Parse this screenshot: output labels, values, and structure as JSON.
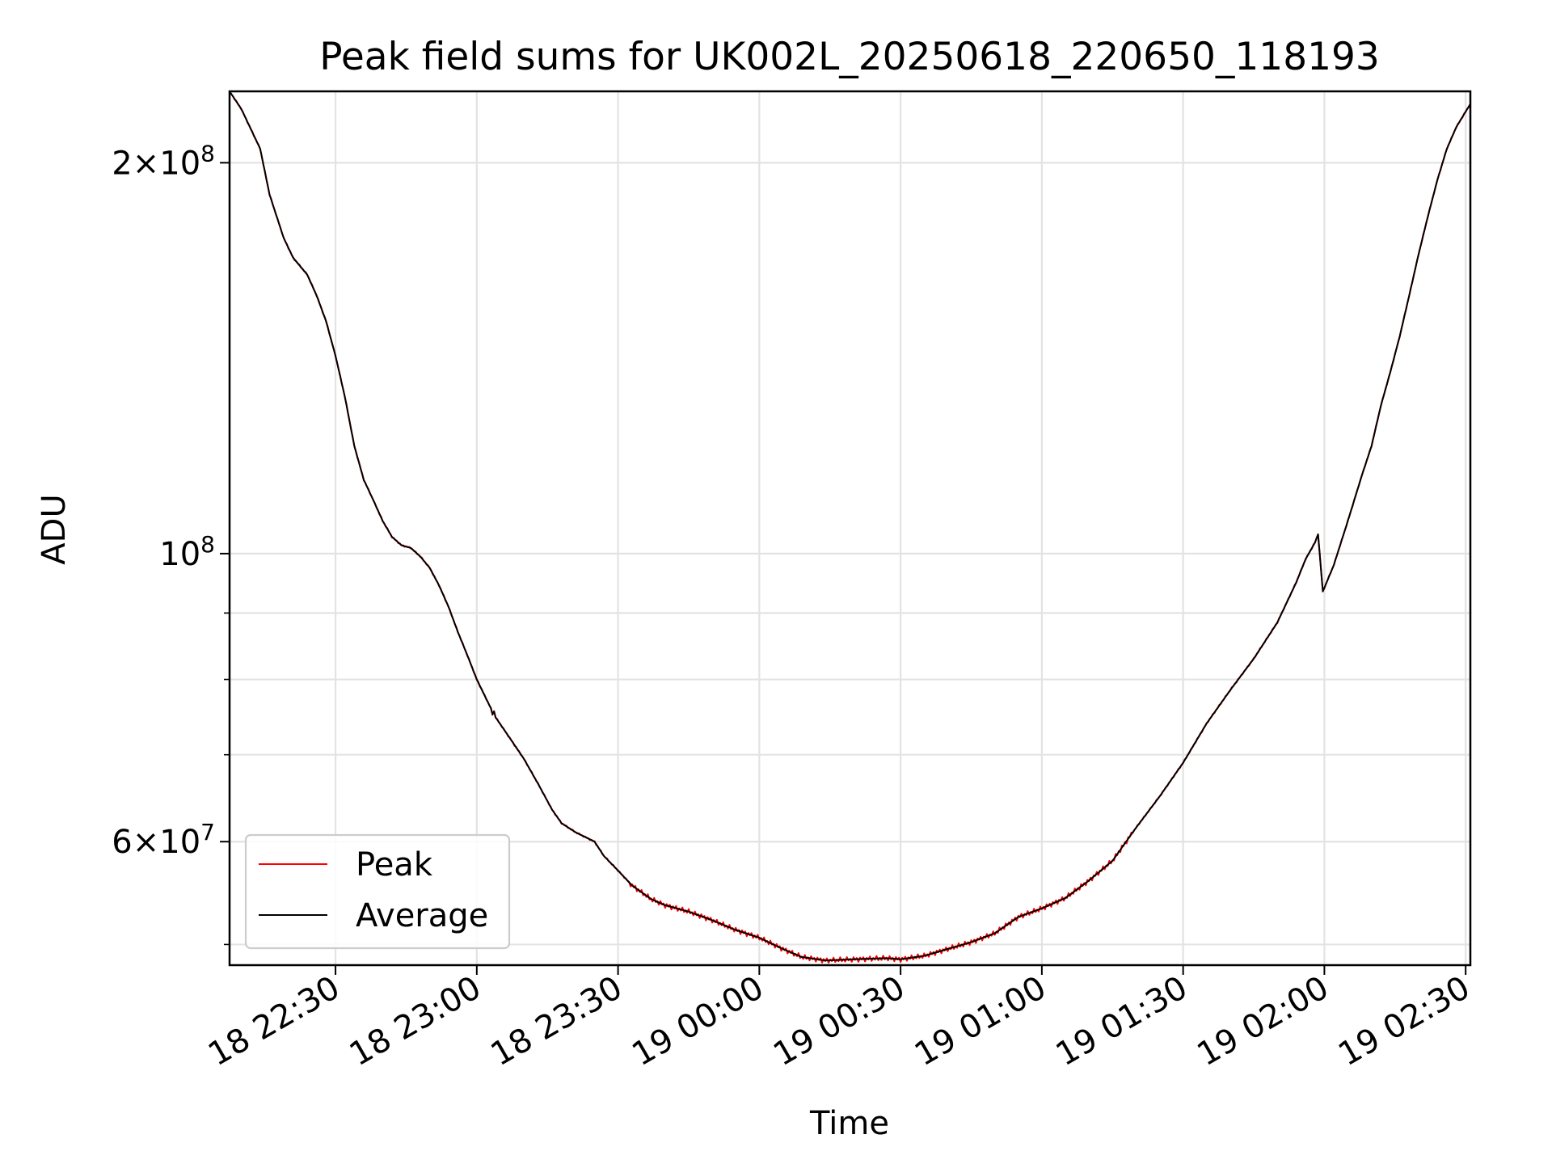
{
  "chart_data": {
    "type": "line",
    "title": "Peak field sums for UK002L_20250618_220650_118193",
    "xlabel": "Time",
    "ylabel": "ADU",
    "y_scale": "log",
    "grid": true,
    "legend_placement": "lower-left",
    "xlim": [
      "2025-06-18T22:07:30",
      "2025-06-19T02:31:00"
    ],
    "ylim": [
      48200000,
      227000000
    ],
    "x_ticks": [
      {
        "t": "2025-06-18T22:30:00",
        "label": "18 22:30"
      },
      {
        "t": "2025-06-18T23:00:00",
        "label": "18 23:00"
      },
      {
        "t": "2025-06-18T23:30:00",
        "label": "18 23:30"
      },
      {
        "t": "2025-06-19T00:00:00",
        "label": "19 00:00"
      },
      {
        "t": "2025-06-19T00:30:00",
        "label": "19 00:30"
      },
      {
        "t": "2025-06-19T01:00:00",
        "label": "19 01:00"
      },
      {
        "t": "2025-06-19T01:30:00",
        "label": "19 01:30"
      },
      {
        "t": "2025-06-19T02:00:00",
        "label": "19 02:00"
      },
      {
        "t": "2025-06-19T02:30:00",
        "label": "19 02:30"
      }
    ],
    "y_major_ticks": [
      {
        "v": 200000000,
        "mant": "2×10",
        "exp": "8"
      },
      {
        "v": 100000000,
        "mant": "10",
        "exp": "8"
      },
      {
        "v": 60000000,
        "mant": "6×10",
        "exp": "7"
      }
    ],
    "y_minor_ticks": [
      50000000,
      70000000,
      80000000,
      90000000,
      300000000
    ],
    "series": [
      {
        "name": "Peak",
        "color": "#ff0000",
        "noisy": true,
        "points": [
          [
            "2025-06-18T22:07:30",
            227000000
          ],
          [
            "2025-06-18T22:10:00",
            220000000
          ],
          [
            "2025-06-18T22:14:00",
            205000000
          ],
          [
            "2025-06-18T22:16:00",
            189000000
          ],
          [
            "2025-06-18T22:19:00",
            175000000
          ],
          [
            "2025-06-18T22:21:00",
            169000000
          ],
          [
            "2025-06-18T22:24:00",
            164000000
          ],
          [
            "2025-06-18T22:26:00",
            158000000
          ],
          [
            "2025-06-18T22:28:00",
            151000000
          ],
          [
            "2025-06-18T22:30:00",
            142000000
          ],
          [
            "2025-06-18T22:32:00",
            132000000
          ],
          [
            "2025-06-18T22:34:00",
            121000000
          ],
          [
            "2025-06-18T22:36:00",
            114000000
          ],
          [
            "2025-06-18T22:38:00",
            110000000
          ],
          [
            "2025-06-18T22:40:00",
            106000000
          ],
          [
            "2025-06-18T22:42:00",
            103000000
          ],
          [
            "2025-06-18T22:44:00",
            101500000
          ],
          [
            "2025-06-18T22:46:00",
            101000000
          ],
          [
            "2025-06-18T22:48:00",
            99500000
          ],
          [
            "2025-06-18T22:50:00",
            97500000
          ],
          [
            "2025-06-18T22:52:00",
            94500000
          ],
          [
            "2025-06-18T22:54:00",
            91000000
          ],
          [
            "2025-06-18T22:56:00",
            87000000
          ],
          [
            "2025-06-18T22:58:00",
            83500000
          ],
          [
            "2025-06-18T23:00:00",
            80000000
          ],
          [
            "2025-06-18T23:03:00",
            76000000
          ],
          [
            "2025-06-18T23:03:20",
            75200000
          ],
          [
            "2025-06-18T23:03:40",
            75600000
          ],
          [
            "2025-06-18T23:04:00",
            74800000
          ],
          [
            "2025-06-18T23:06:00",
            73000000
          ],
          [
            "2025-06-18T23:10:00",
            69500000
          ],
          [
            "2025-06-18T23:13:00",
            66500000
          ],
          [
            "2025-06-18T23:16:00",
            63500000
          ],
          [
            "2025-06-18T23:18:00",
            62000000
          ],
          [
            "2025-06-18T23:21:00",
            61000000
          ],
          [
            "2025-06-18T23:25:00",
            60000000
          ],
          [
            "2025-06-18T23:27:00",
            58500000
          ],
          [
            "2025-06-18T23:30:00",
            57000000
          ],
          [
            "2025-06-18T23:33:00",
            55500000
          ],
          [
            "2025-06-18T23:37:00",
            54200000
          ],
          [
            "2025-06-18T23:40:00",
            53600000
          ],
          [
            "2025-06-18T23:45:00",
            53000000
          ],
          [
            "2025-06-18T23:50:00",
            52200000
          ],
          [
            "2025-06-18T23:55:00",
            51300000
          ],
          [
            "2025-06-19T00:00:00",
            50600000
          ],
          [
            "2025-06-19T00:05:00",
            49600000
          ],
          [
            "2025-06-19T00:09:00",
            48900000
          ],
          [
            "2025-06-19T00:14:00",
            48600000
          ],
          [
            "2025-06-19T00:20:00",
            48700000
          ],
          [
            "2025-06-19T00:27:00",
            48800000
          ],
          [
            "2025-06-19T00:30:00",
            48700000
          ],
          [
            "2025-06-19T00:35:00",
            49000000
          ],
          [
            "2025-06-19T00:40:00",
            49600000
          ],
          [
            "2025-06-19T00:45:00",
            50200000
          ],
          [
            "2025-06-19T00:50:00",
            51000000
          ],
          [
            "2025-06-19T00:55:00",
            52500000
          ],
          [
            "2025-06-19T01:00:00",
            53300000
          ],
          [
            "2025-06-19T01:05:00",
            54300000
          ],
          [
            "2025-06-19T01:10:00",
            56000000
          ],
          [
            "2025-06-19T01:15:00",
            58000000
          ],
          [
            "2025-06-19T01:20:00",
            61500000
          ],
          [
            "2025-06-19T01:25:00",
            65000000
          ],
          [
            "2025-06-19T01:30:00",
            69000000
          ],
          [
            "2025-06-19T01:35:00",
            74000000
          ],
          [
            "2025-06-19T01:40:00",
            78500000
          ],
          [
            "2025-06-19T01:45:00",
            83000000
          ],
          [
            "2025-06-19T01:50:00",
            88500000
          ],
          [
            "2025-06-19T01:54:00",
            95000000
          ],
          [
            "2025-06-19T01:56:00",
            99000000
          ],
          [
            "2025-06-19T01:58:00",
            102000000
          ],
          [
            "2025-06-19T01:58:40",
            103500000
          ],
          [
            "2025-06-19T01:59:40",
            93500000
          ],
          [
            "2025-06-19T02:02:00",
            98000000
          ],
          [
            "2025-06-19T02:05:00",
            106000000
          ],
          [
            "2025-06-19T02:08:00",
            115000000
          ],
          [
            "2025-06-19T02:10:00",
            121000000
          ],
          [
            "2025-06-19T02:12:00",
            130000000
          ],
          [
            "2025-06-19T02:14:00",
            138000000
          ],
          [
            "2025-06-19T02:16:00",
            147000000
          ],
          [
            "2025-06-19T02:18:00",
            158000000
          ],
          [
            "2025-06-19T02:20:00",
            170000000
          ],
          [
            "2025-06-19T02:22:00",
            182000000
          ],
          [
            "2025-06-19T02:24:00",
            194000000
          ],
          [
            "2025-06-19T02:26:00",
            205000000
          ],
          [
            "2025-06-19T02:28:00",
            213000000
          ],
          [
            "2025-06-19T02:31:00",
            222000000
          ]
        ]
      },
      {
        "name": "Average",
        "color": "#000000",
        "noisy": false,
        "points": [
          [
            "2025-06-18T22:07:30",
            227000000
          ],
          [
            "2025-06-18T22:10:00",
            220000000
          ],
          [
            "2025-06-18T22:14:00",
            205000000
          ],
          [
            "2025-06-18T22:16:00",
            189000000
          ],
          [
            "2025-06-18T22:19:00",
            175000000
          ],
          [
            "2025-06-18T22:21:00",
            169000000
          ],
          [
            "2025-06-18T22:24:00",
            164000000
          ],
          [
            "2025-06-18T22:26:00",
            158000000
          ],
          [
            "2025-06-18T22:28:00",
            151000000
          ],
          [
            "2025-06-18T22:30:00",
            142000000
          ],
          [
            "2025-06-18T22:32:00",
            132000000
          ],
          [
            "2025-06-18T22:34:00",
            121000000
          ],
          [
            "2025-06-18T22:36:00",
            114000000
          ],
          [
            "2025-06-18T22:38:00",
            110000000
          ],
          [
            "2025-06-18T22:40:00",
            106000000
          ],
          [
            "2025-06-18T22:42:00",
            103000000
          ],
          [
            "2025-06-18T22:44:00",
            101500000
          ],
          [
            "2025-06-18T22:46:00",
            101000000
          ],
          [
            "2025-06-18T22:48:00",
            99500000
          ],
          [
            "2025-06-18T22:50:00",
            97500000
          ],
          [
            "2025-06-18T22:52:00",
            94500000
          ],
          [
            "2025-06-18T22:54:00",
            91000000
          ],
          [
            "2025-06-18T22:56:00",
            87000000
          ],
          [
            "2025-06-18T22:58:00",
            83500000
          ],
          [
            "2025-06-18T23:00:00",
            80000000
          ],
          [
            "2025-06-18T23:03:00",
            76000000
          ],
          [
            "2025-06-18T23:03:20",
            75200000
          ],
          [
            "2025-06-18T23:03:40",
            75600000
          ],
          [
            "2025-06-18T23:04:00",
            74800000
          ],
          [
            "2025-06-18T23:06:00",
            73000000
          ],
          [
            "2025-06-18T23:10:00",
            69500000
          ],
          [
            "2025-06-18T23:13:00",
            66500000
          ],
          [
            "2025-06-18T23:16:00",
            63500000
          ],
          [
            "2025-06-18T23:18:00",
            62000000
          ],
          [
            "2025-06-18T23:21:00",
            61000000
          ],
          [
            "2025-06-18T23:25:00",
            60000000
          ],
          [
            "2025-06-18T23:27:00",
            58500000
          ],
          [
            "2025-06-18T23:30:00",
            57000000
          ],
          [
            "2025-06-18T23:33:00",
            55500000
          ],
          [
            "2025-06-18T23:37:00",
            54200000
          ],
          [
            "2025-06-18T23:40:00",
            53600000
          ],
          [
            "2025-06-18T23:45:00",
            53000000
          ],
          [
            "2025-06-18T23:50:00",
            52200000
          ],
          [
            "2025-06-18T23:55:00",
            51300000
          ],
          [
            "2025-06-19T00:00:00",
            50600000
          ],
          [
            "2025-06-19T00:05:00",
            49600000
          ],
          [
            "2025-06-19T00:09:00",
            48900000
          ],
          [
            "2025-06-19T00:14:00",
            48600000
          ],
          [
            "2025-06-19T00:20:00",
            48700000
          ],
          [
            "2025-06-19T00:27:00",
            48800000
          ],
          [
            "2025-06-19T00:30:00",
            48700000
          ],
          [
            "2025-06-19T00:35:00",
            49000000
          ],
          [
            "2025-06-19T00:40:00",
            49600000
          ],
          [
            "2025-06-19T00:45:00",
            50200000
          ],
          [
            "2025-06-19T00:50:00",
            51000000
          ],
          [
            "2025-06-19T00:55:00",
            52500000
          ],
          [
            "2025-06-19T01:00:00",
            53300000
          ],
          [
            "2025-06-19T01:05:00",
            54300000
          ],
          [
            "2025-06-19T01:10:00",
            56000000
          ],
          [
            "2025-06-19T01:15:00",
            58000000
          ],
          [
            "2025-06-19T01:20:00",
            61500000
          ],
          [
            "2025-06-19T01:25:00",
            65000000
          ],
          [
            "2025-06-19T01:30:00",
            69000000
          ],
          [
            "2025-06-19T01:35:00",
            74000000
          ],
          [
            "2025-06-19T01:40:00",
            78500000
          ],
          [
            "2025-06-19T01:45:00",
            83000000
          ],
          [
            "2025-06-19T01:50:00",
            88500000
          ],
          [
            "2025-06-19T01:54:00",
            95000000
          ],
          [
            "2025-06-19T01:56:00",
            99000000
          ],
          [
            "2025-06-19T01:58:00",
            102000000
          ],
          [
            "2025-06-19T01:58:40",
            103500000
          ],
          [
            "2025-06-19T01:59:40",
            93500000
          ],
          [
            "2025-06-19T02:02:00",
            98000000
          ],
          [
            "2025-06-19T02:05:00",
            106000000
          ],
          [
            "2025-06-19T02:08:00",
            115000000
          ],
          [
            "2025-06-19T02:10:00",
            121000000
          ],
          [
            "2025-06-19T02:12:00",
            130000000
          ],
          [
            "2025-06-19T02:14:00",
            138000000
          ],
          [
            "2025-06-19T02:16:00",
            147000000
          ],
          [
            "2025-06-19T02:18:00",
            158000000
          ],
          [
            "2025-06-19T02:20:00",
            170000000
          ],
          [
            "2025-06-19T02:22:00",
            182000000
          ],
          [
            "2025-06-19T02:24:00",
            194000000
          ],
          [
            "2025-06-19T02:26:00",
            205000000
          ],
          [
            "2025-06-19T02:28:00",
            213000000
          ],
          [
            "2025-06-19T02:31:00",
            222000000
          ]
        ]
      }
    ]
  }
}
